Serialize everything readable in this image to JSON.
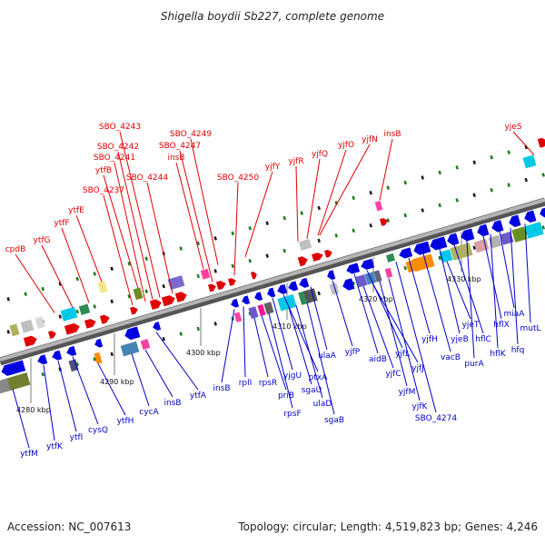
{
  "title": "Shigella boydii Sb227, complete genome",
  "footer": {
    "accession": "Accession: NC_007613",
    "summary": "Topology: circular; Length: 4,519,823 bp; Genes: 4,246"
  },
  "colors": {
    "forward_label": "#e00000",
    "reverse_label": "#0000c8",
    "backbone": "#9a9a9a",
    "tick": "#1e7d1e"
  },
  "ticks": [
    "4280 kbp",
    "4290 kbp",
    "4300 kbp",
    "4310 kbp",
    "4320 kbp",
    "4330 kbp"
  ],
  "forward_genes": [
    "yjeS",
    "insB",
    "yjfN",
    "yjfO",
    "yjfQ",
    "yjfR",
    "yjfY",
    "SBO_4250",
    "SBO_4249",
    "SBO_4247",
    "insB",
    "SBO_4244",
    "SBO_4243",
    "SBO_4242",
    "SBO_4241",
    "ytfB",
    "SBO_4237",
    "ytfE",
    "ytfF",
    "ytfG",
    "cpdB"
  ],
  "reverse_genes": [
    "ytfM",
    "ytfK",
    "ytfI",
    "cysQ",
    "ytfH",
    "cycA",
    "insB",
    "ytfA",
    "insB",
    "rplI",
    "rpsR",
    "priB",
    "rpsF",
    "yjgU",
    "ptxA",
    "sgaU",
    "ulaD",
    "sgaB",
    "ulaA",
    "yjfP",
    "aidB",
    "yjfL",
    "yjfC",
    "yjfJ",
    "yjfM",
    "yjfK",
    "SBO_4274",
    "yjfH",
    "vacB",
    "yjeB",
    "yjeT",
    "hflC",
    "purA",
    "hflX",
    "hflK",
    "miaA",
    "hfq",
    "mutL"
  ]
}
